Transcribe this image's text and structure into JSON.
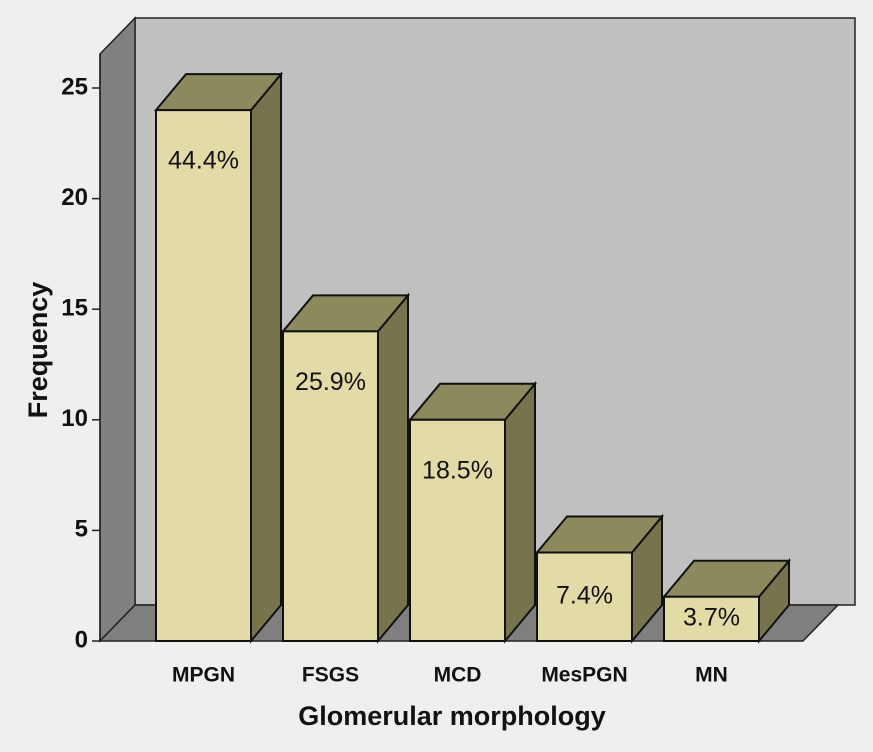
{
  "chart_data": {
    "type": "bar3d",
    "x_label": "Glomerular morphology",
    "y_label": "Frequency",
    "categories": [
      "MPGN",
      "FSGS",
      "MCD",
      "MesPGN",
      "MN"
    ],
    "values": [
      24,
      14,
      10,
      4,
      2
    ],
    "data_labels": {
      "values": [
        44.4,
        25.9,
        18.5,
        7.4,
        3.7
      ],
      "value_labels": [
        "44.4%",
        "25.9%",
        "18.5%",
        "7.4%",
        "3.7%"
      ]
    },
    "color": "#e2dba6",
    "ylim": [
      0,
      25
    ],
    "yticks": [
      0,
      5,
      10,
      15,
      20,
      25
    ]
  }
}
